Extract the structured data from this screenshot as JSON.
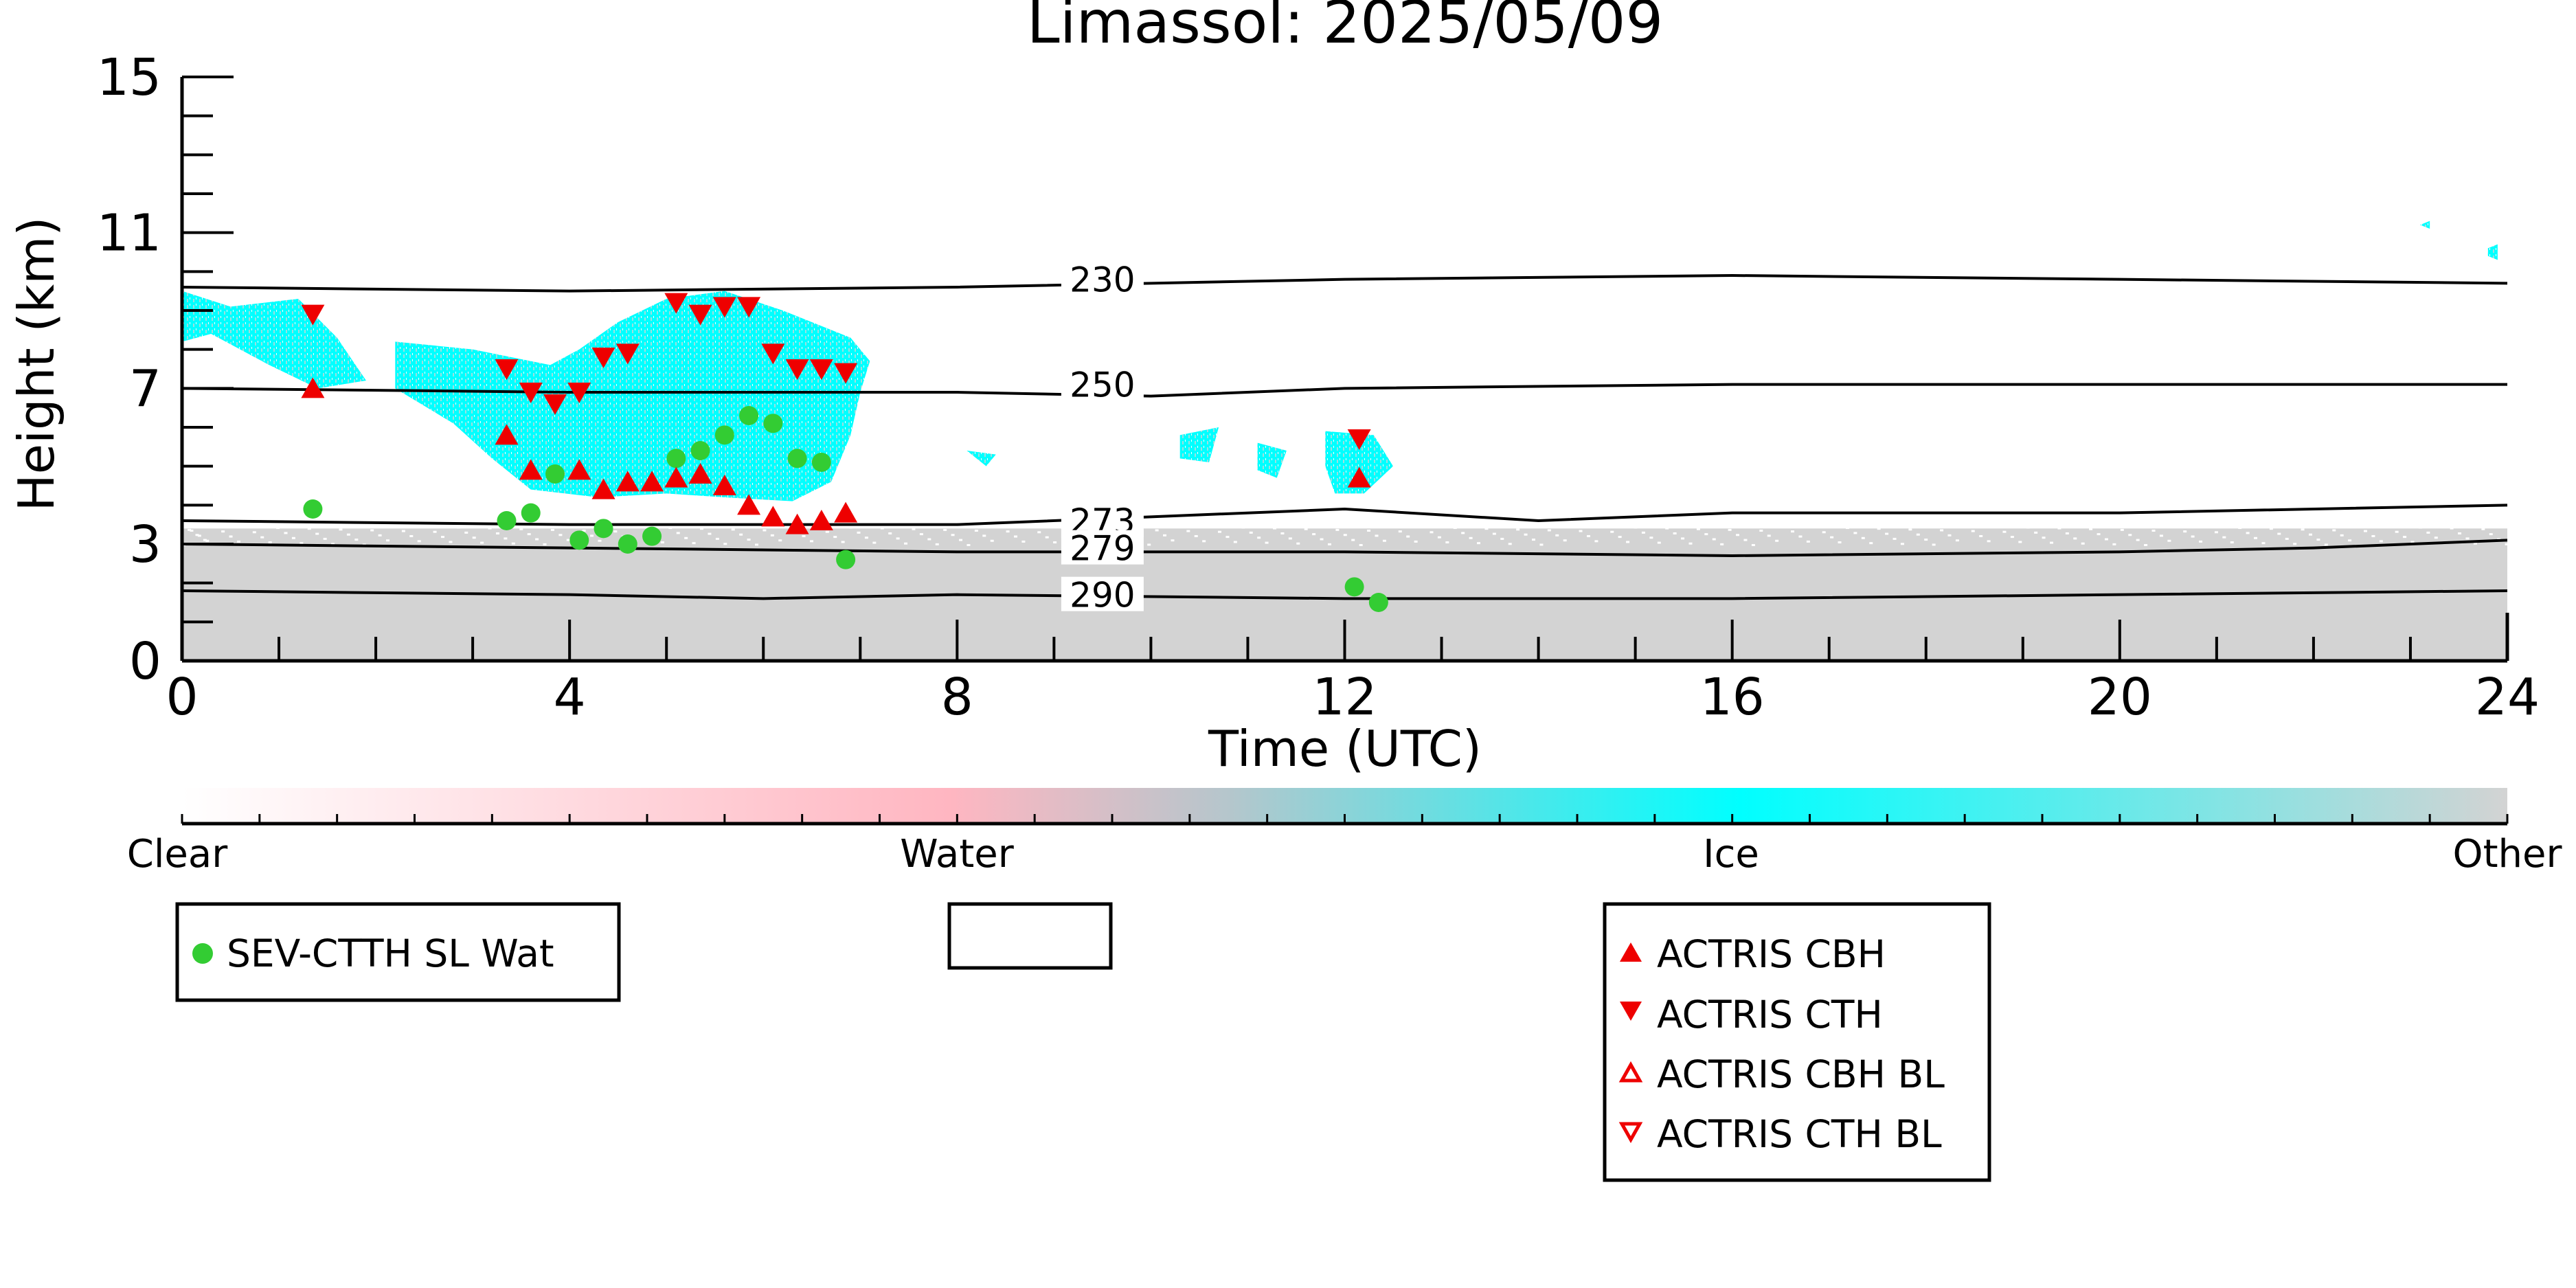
{
  "chart_data": {
    "type": "scatter",
    "title": "Limassol: 2025/05/09",
    "xlabel": "Time (UTC)",
    "ylabel": "Height (km)",
    "xlim": [
      0,
      24
    ],
    "ylim": [
      0,
      15
    ],
    "x_ticks": [
      0,
      4,
      8,
      12,
      16,
      20,
      24
    ],
    "y_ticks": [
      0,
      3,
      7,
      11,
      15
    ],
    "isotherms": [
      {
        "label": "230",
        "label_x": 9.5,
        "label_y": 9.8,
        "points": [
          [
            0,
            9.6
          ],
          [
            4,
            9.5
          ],
          [
            8,
            9.6
          ],
          [
            12,
            9.8
          ],
          [
            16,
            9.9
          ],
          [
            20,
            9.8
          ],
          [
            24,
            9.7
          ]
        ]
      },
      {
        "label": "250",
        "label_x": 9.5,
        "label_y": 7.1,
        "points": [
          [
            0,
            7.0
          ],
          [
            4,
            6.9
          ],
          [
            8,
            6.9
          ],
          [
            10,
            6.8
          ],
          [
            12,
            7.0
          ],
          [
            16,
            7.1
          ],
          [
            20,
            7.1
          ],
          [
            24,
            7.1
          ]
        ]
      },
      {
        "label": "273",
        "label_x": 9.5,
        "label_y": 3.6,
        "points": [
          [
            0,
            3.6
          ],
          [
            4,
            3.5
          ],
          [
            8,
            3.5
          ],
          [
            12,
            3.9
          ],
          [
            14,
            3.6
          ],
          [
            16,
            3.8
          ],
          [
            20,
            3.8
          ],
          [
            24,
            4.0
          ]
        ]
      },
      {
        "label": "279",
        "label_x": 9.5,
        "label_y": 2.9,
        "points": [
          [
            0,
            3.0
          ],
          [
            4,
            2.9
          ],
          [
            8,
            2.8
          ],
          [
            12,
            2.8
          ],
          [
            16,
            2.7
          ],
          [
            20,
            2.8
          ],
          [
            22,
            2.9
          ],
          [
            24,
            3.1
          ]
        ]
      },
      {
        "label": "290",
        "label_x": 9.5,
        "label_y": 1.7,
        "points": [
          [
            0,
            1.8
          ],
          [
            4,
            1.7
          ],
          [
            6,
            1.6
          ],
          [
            8,
            1.7
          ],
          [
            12,
            1.6
          ],
          [
            16,
            1.6
          ],
          [
            20,
            1.7
          ],
          [
            24,
            1.8
          ]
        ]
      }
    ],
    "background_layer": {
      "category": "Other",
      "color": "#d3d3d3",
      "top_km": 3.4
    },
    "ice_clouds": [
      {
        "color": "#00ffff",
        "points": [
          [
            0,
            9.5
          ],
          [
            0.5,
            9.1
          ],
          [
            1.2,
            9.3
          ],
          [
            1.6,
            8.3
          ],
          [
            1.9,
            7.2
          ],
          [
            1.4,
            7.0
          ],
          [
            0.9,
            7.6
          ],
          [
            0.3,
            8.4
          ],
          [
            0,
            8.2
          ]
        ]
      },
      {
        "color": "#00ffff",
        "points": [
          [
            2.2,
            8.2
          ],
          [
            3.0,
            8.0
          ],
          [
            3.8,
            7.6
          ],
          [
            4.1,
            8.0
          ],
          [
            4.5,
            8.7
          ],
          [
            5.0,
            9.3
          ],
          [
            5.6,
            9.5
          ],
          [
            6.2,
            9.0
          ],
          [
            6.9,
            8.3
          ],
          [
            7.1,
            7.7
          ],
          [
            7.0,
            6.9
          ],
          [
            6.9,
            5.8
          ],
          [
            6.7,
            4.6
          ],
          [
            6.3,
            4.1
          ],
          [
            5.6,
            4.2
          ],
          [
            5.0,
            4.3
          ],
          [
            4.3,
            4.2
          ],
          [
            3.6,
            4.4
          ],
          [
            3.2,
            5.2
          ],
          [
            2.8,
            6.1
          ],
          [
            2.2,
            7.0
          ]
        ]
      },
      {
        "color": "#00ffff",
        "points": [
          [
            8.1,
            5.4
          ],
          [
            8.3,
            5.0
          ],
          [
            8.4,
            5.3
          ]
        ]
      },
      {
        "color": "#00ffff",
        "points": [
          [
            10.3,
            5.8
          ],
          [
            10.7,
            6.0
          ],
          [
            10.6,
            5.1
          ],
          [
            10.3,
            5.2
          ]
        ]
      },
      {
        "color": "#00ffff",
        "points": [
          [
            11.1,
            5.6
          ],
          [
            11.4,
            5.4
          ],
          [
            11.3,
            4.7
          ],
          [
            11.1,
            4.9
          ]
        ]
      },
      {
        "color": "#00ffff",
        "points": [
          [
            11.8,
            5.9
          ],
          [
            12.3,
            5.8
          ],
          [
            12.5,
            5.0
          ],
          [
            12.2,
            4.3
          ],
          [
            11.9,
            4.3
          ],
          [
            11.8,
            5.0
          ]
        ]
      },
      {
        "color": "#00ffff",
        "points": [
          [
            23.1,
            11.2
          ],
          [
            23.2,
            11.3
          ],
          [
            23.2,
            11.1
          ]
        ]
      },
      {
        "color": "#00ffff",
        "points": [
          [
            23.8,
            10.6
          ],
          [
            23.9,
            10.7
          ],
          [
            23.9,
            10.3
          ],
          [
            23.8,
            10.4
          ]
        ]
      }
    ],
    "series": [
      {
        "name": "SEV-CTTH SL Wat",
        "marker": "circle",
        "color": "#33cc33",
        "points": [
          [
            1.35,
            3.9
          ],
          [
            3.35,
            3.6
          ],
          [
            3.6,
            3.8
          ],
          [
            3.85,
            4.8
          ],
          [
            4.1,
            3.1
          ],
          [
            4.35,
            3.4
          ],
          [
            4.6,
            3.0
          ],
          [
            4.85,
            3.2
          ],
          [
            5.1,
            5.2
          ],
          [
            5.35,
            5.4
          ],
          [
            5.6,
            5.8
          ],
          [
            5.85,
            6.3
          ],
          [
            6.1,
            6.1
          ],
          [
            6.35,
            5.2
          ],
          [
            6.6,
            5.1
          ],
          [
            6.85,
            2.6
          ],
          [
            12.1,
            1.9
          ],
          [
            12.35,
            1.5
          ]
        ]
      },
      {
        "name": "ACTRIS CBH",
        "marker": "triangle-up",
        "color": "#ee0000",
        "points": [
          [
            1.35,
            7.0
          ],
          [
            3.35,
            5.8
          ],
          [
            3.6,
            4.9
          ],
          [
            4.1,
            4.9
          ],
          [
            4.35,
            4.4
          ],
          [
            4.6,
            4.6
          ],
          [
            4.85,
            4.6
          ],
          [
            5.1,
            4.7
          ],
          [
            5.35,
            4.8
          ],
          [
            5.6,
            4.5
          ],
          [
            5.85,
            4.0
          ],
          [
            6.1,
            3.7
          ],
          [
            6.35,
            3.5
          ],
          [
            6.6,
            3.6
          ],
          [
            6.85,
            3.8
          ],
          [
            12.15,
            4.7
          ]
        ]
      },
      {
        "name": "ACTRIS CTH",
        "marker": "triangle-down",
        "color": "#ee0000",
        "points": [
          [
            1.35,
            8.9
          ],
          [
            3.35,
            7.5
          ],
          [
            3.6,
            6.9
          ],
          [
            3.85,
            6.6
          ],
          [
            4.1,
            6.9
          ],
          [
            4.35,
            7.8
          ],
          [
            4.6,
            7.9
          ],
          [
            5.1,
            9.2
          ],
          [
            5.35,
            8.9
          ],
          [
            5.6,
            9.1
          ],
          [
            5.85,
            9.1
          ],
          [
            6.1,
            7.9
          ],
          [
            6.35,
            7.5
          ],
          [
            6.6,
            7.5
          ],
          [
            6.85,
            7.4
          ],
          [
            12.15,
            5.7
          ]
        ]
      },
      {
        "name": "ACTRIS CBH BL",
        "marker": "triangle-up-open",
        "color": "#ee0000",
        "points": []
      },
      {
        "name": "ACTRIS CTH BL",
        "marker": "triangle-down-open",
        "color": "#ee0000",
        "points": []
      }
    ],
    "colorbar": {
      "labels": [
        "Clear",
        "Water",
        "Ice",
        "Other"
      ],
      "colors": [
        "#ffffff",
        "#ffb6c1",
        "#00ffff",
        "#d3d3d3"
      ]
    },
    "legends": [
      {
        "placement": "bottom-left",
        "items": [
          "SEV-CTTH SL Wat"
        ]
      },
      {
        "placement": "bottom-center",
        "items": []
      },
      {
        "placement": "bottom-right",
        "items": [
          "ACTRIS CBH",
          "ACTRIS CTH",
          "ACTRIS CBH BL",
          "ACTRIS CTH BL"
        ]
      }
    ]
  }
}
